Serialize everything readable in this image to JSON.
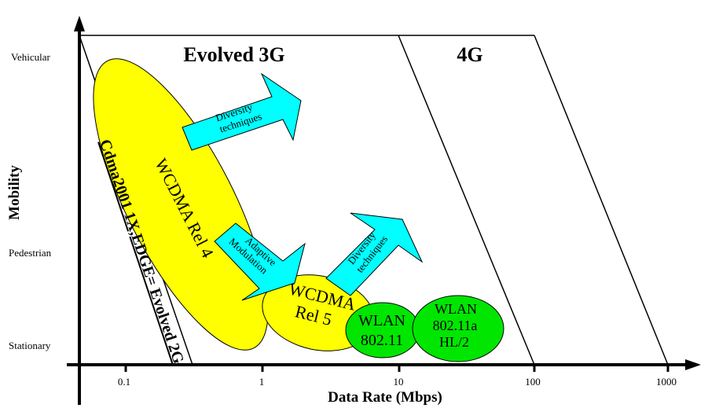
{
  "regions": {
    "evolved3g": "Evolved 3G",
    "g4": "4G"
  },
  "axes": {
    "ylabel": "Mobility",
    "xlabel": "Data Rate (Mbps)",
    "yticks": [
      "Vehicular",
      "Pedestrian",
      "Stationary"
    ],
    "xticks": [
      "0.1",
      "1",
      "10",
      "100",
      "1000"
    ]
  },
  "technologies": {
    "cdma": "Cdma2001 1X,EDGE= Evolved 2G",
    "wcdma4": "WCDMA Rel 4",
    "wcdma5_line1": "WCDMA",
    "wcdma5_line2": "Rel 5",
    "wlan1_line1": "WLAN",
    "wlan1_line2": "802.11",
    "wlan2_line1": "WLAN",
    "wlan2_line2": "802.11a",
    "wlan2_line3": "HL/2"
  },
  "arrows": {
    "diversity1_line1": "Diversity",
    "diversity1_line2": "techniques",
    "adaptive_line1": "Adaptive",
    "adaptive_line2": "Modulation",
    "diversity2_line1": "Diversity",
    "diversity2_line2": "techniques"
  },
  "colors": {
    "yellow": "#ffff00",
    "cyan": "#00ffff",
    "green": "#00e600"
  }
}
